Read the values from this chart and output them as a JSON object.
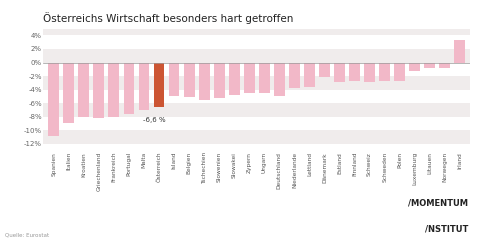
{
  "title": "Österreichs Wirtschaft besonders hart getroffen",
  "source": "Quelle: Eurostat",
  "logo_line1": "MOMENTUM",
  "logo_line2": "/NSTITUT",
  "categories": [
    "Spanien",
    "Italien",
    "Kroatien",
    "Griechenland",
    "Frankreich",
    "Portugal",
    "Malta",
    "Österreich",
    "Island",
    "Belgien",
    "Tschechien",
    "Slowenien",
    "Slowakei",
    "Zypern",
    "Ungarn",
    "Deutschland",
    "Niederlande",
    "Lettland",
    "Dänemark",
    "Estland",
    "Finnland",
    "Schweiz",
    "Schweden",
    "Polen",
    "Luxemburg",
    "Litauen",
    "Norwegen",
    "Irland"
  ],
  "values": [
    -10.8,
    -8.9,
    -8.1,
    -8.2,
    -8.0,
    -7.6,
    -7.0,
    -6.6,
    -5.0,
    -5.1,
    -5.6,
    -5.2,
    -4.8,
    -4.5,
    -4.5,
    -4.9,
    -3.8,
    -3.6,
    -2.1,
    -2.9,
    -2.8,
    -2.9,
    -2.8,
    -2.7,
    -1.3,
    -0.8,
    -0.8,
    3.4
  ],
  "bar_color_default": "#f2b8c8",
  "bar_color_highlight": "#cc5533",
  "highlight_index": 7,
  "annotation_text": "-6,6 %",
  "ylim": [
    -13,
    5
  ],
  "yticks": [
    -12,
    -10,
    -8,
    -6,
    -4,
    -2,
    0,
    2,
    4
  ],
  "ytick_labels": [
    "-12%",
    "-10%",
    "-8%",
    "-6%",
    "-4%",
    "-2%",
    "0%",
    "2%",
    "4%"
  ],
  "background_color": "#ffffff",
  "title_fontsize": 7.5,
  "tick_fontsize": 5.0,
  "label_fontsize": 4.2
}
